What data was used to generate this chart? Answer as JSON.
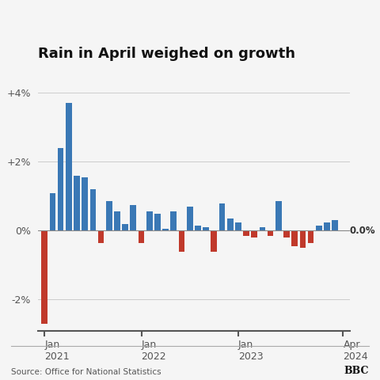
{
  "title": "Rain in April weighed on growth",
  "source": "Source: Office for National Statistics",
  "bbc_label": "BBC",
  "zero_label": "0.0%",
  "background_color": "#f5f5f5",
  "bar_color_positive": "#3a78b5",
  "bar_color_negative": "#c0392b",
  "ylim": [
    -2.9,
    4.6
  ],
  "yticks": [
    -2,
    0,
    2,
    4
  ],
  "ytick_labels": [
    "-2%",
    "0%",
    "+2%",
    "+4%"
  ],
  "values": [
    -2.7,
    1.1,
    2.4,
    3.7,
    1.6,
    1.55,
    1.2,
    -0.35,
    0.85,
    0.55,
    0.2,
    0.75,
    -0.35,
    0.55,
    0.5,
    0.05,
    0.55,
    -0.6,
    0.7,
    0.15,
    0.1,
    -0.6,
    0.8,
    0.35,
    0.25,
    -0.15,
    -0.2,
    0.1,
    -0.15,
    0.85,
    -0.2,
    -0.45,
    -0.5,
    -0.35,
    0.15,
    0.25,
    0.3,
    0.0
  ],
  "n_bars": 38,
  "jan2021_idx": 0,
  "jan2022_idx": 12,
  "jan2023_idx": 24,
  "apr2024_idx": 37
}
